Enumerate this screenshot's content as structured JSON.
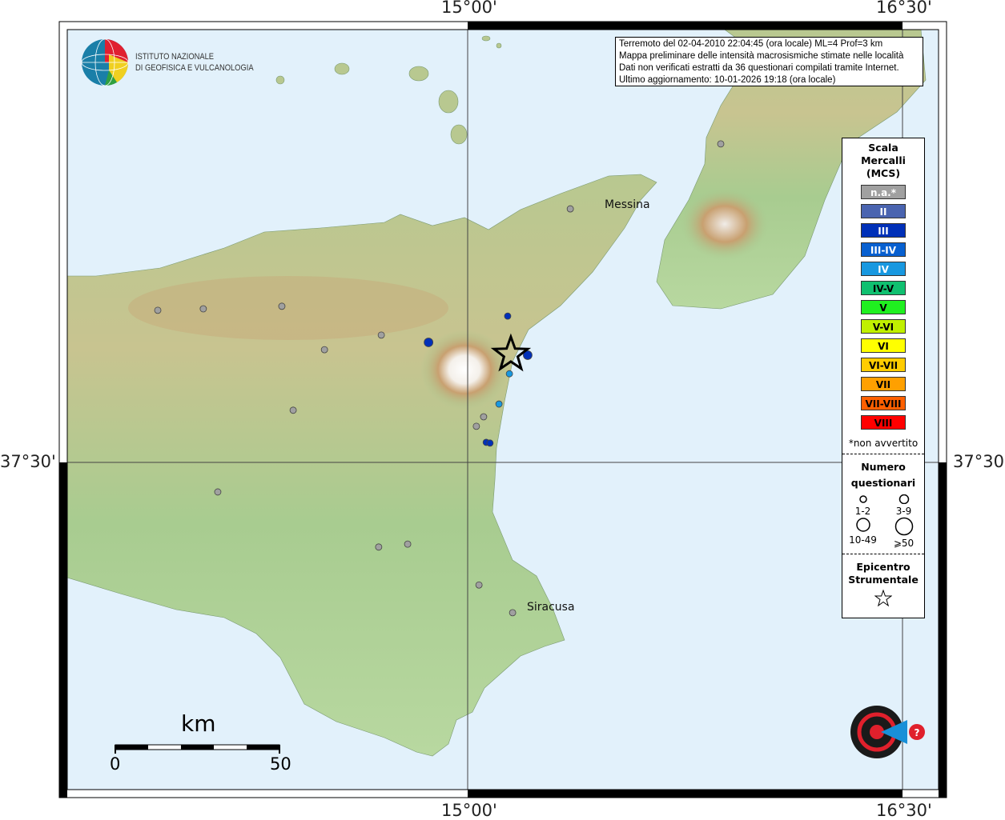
{
  "axes": {
    "lon_ticks": [
      "15°00'",
      "16°30'"
    ],
    "lat_ticks": [
      "37°30'"
    ]
  },
  "info_box": {
    "lines": [
      "Terremoto del 02-04-2010 22:04:45 (ora locale) ML=4 Prof=3 km",
      "Mappa preliminare delle intensità macrosismiche stimate nelle località",
      "Dati non verificati estratti da 36 questionari compilati tramite Internet.",
      "Ultimo aggiornamento: 10-01-2026 19:18 (ora locale)"
    ]
  },
  "logo_ingv": {
    "line1": "ISTITUTO NAZIONALE",
    "line2": "DI GEOFISICA E VULCANOLOGIA"
  },
  "logo_hsit": "www.haisentitoilterremoto.it",
  "cities": [
    {
      "name": "Messina"
    },
    {
      "name": "Siracusa"
    }
  ],
  "scale_bar": {
    "unit": "km",
    "min": "0",
    "max": "50"
  },
  "legend": {
    "title": "Scala Mercalli (MCS)",
    "classes": [
      {
        "label": "n.a.*",
        "color": "#a0a0a0",
        "text": "#fff"
      },
      {
        "label": "II",
        "color": "#4a64b0",
        "text": "#fff"
      },
      {
        "label": "III",
        "color": "#0030b8",
        "text": "#fff"
      },
      {
        "label": "III-IV",
        "color": "#0860d0",
        "text": "#fff"
      },
      {
        "label": "IV",
        "color": "#1898e0",
        "text": "#fff"
      },
      {
        "label": "IV-V",
        "color": "#10c070",
        "text": "#000"
      },
      {
        "label": "V",
        "color": "#20f020",
        "text": "#000"
      },
      {
        "label": "V-VI",
        "color": "#c0f000",
        "text": "#000"
      },
      {
        "label": "VI",
        "color": "#ffff00",
        "text": "#000"
      },
      {
        "label": "VI-VII",
        "color": "#ffcc00",
        "text": "#000"
      },
      {
        "label": "VII",
        "color": "#ffa000",
        "text": "#000"
      },
      {
        "label": "VII-VIII",
        "color": "#ff6000",
        "text": "#000"
      },
      {
        "label": "VIII",
        "color": "#ff0000",
        "text": "#000"
      }
    ],
    "note": "*non avvertito",
    "count_title": "Numero questionari",
    "count_classes": [
      "1-2",
      "3-9",
      "10-49",
      "⩾50"
    ],
    "epicenter_title": "Epicentro Strumentale"
  },
  "epicenter": {
    "lon": 15.149,
    "lat": 37.796
  },
  "observations": [
    {
      "lon": 13.931,
      "lat": 37.917,
      "mcs": "n.a.*",
      "count": "1-2"
    },
    {
      "lon": 14.088,
      "lat": 37.921,
      "mcs": "n.a.*",
      "count": "1-2"
    },
    {
      "lon": 14.359,
      "lat": 37.928,
      "mcs": "n.a.*",
      "count": "1-2"
    },
    {
      "lon": 14.702,
      "lat": 37.849,
      "mcs": "n.a.*",
      "count": "1-2"
    },
    {
      "lon": 14.506,
      "lat": 37.809,
      "mcs": "n.a.*",
      "count": "1-2"
    },
    {
      "lon": 14.398,
      "lat": 37.643,
      "mcs": "n.a.*",
      "count": "1-2"
    },
    {
      "lon": 14.138,
      "lat": 37.419,
      "mcs": "n.a.*",
      "count": "1-2"
    },
    {
      "lon": 14.693,
      "lat": 37.268,
      "mcs": "n.a.*",
      "count": "1-2"
    },
    {
      "lon": 14.793,
      "lat": 37.276,
      "mcs": "n.a.*",
      "count": "1-2"
    },
    {
      "lon": 15.039,
      "lat": 37.164,
      "mcs": "n.a.*",
      "count": "1-2"
    },
    {
      "lon": 15.155,
      "lat": 37.088,
      "mcs": "n.a.*",
      "count": "1-2"
    },
    {
      "lon": 15.354,
      "lat": 38.195,
      "mcs": "n.a.*",
      "count": "1-2"
    },
    {
      "lon": 15.873,
      "lat": 38.373,
      "mcs": "n.a.*",
      "count": "1-2"
    },
    {
      "lon": 15.03,
      "lat": 37.599,
      "mcs": "n.a.*",
      "count": "1-2"
    },
    {
      "lon": 15.055,
      "lat": 37.625,
      "mcs": "n.a.*",
      "count": "1-2"
    },
    {
      "lon": 14.865,
      "lat": 37.829,
      "mcs": "III",
      "count": "3-9"
    },
    {
      "lon": 15.207,
      "lat": 37.794,
      "mcs": "III",
      "count": "3-9"
    },
    {
      "lon": 15.138,
      "lat": 37.901,
      "mcs": "III",
      "count": "1-2"
    },
    {
      "lon": 15.064,
      "lat": 37.555,
      "mcs": "III",
      "count": "1-2"
    },
    {
      "lon": 15.077,
      "lat": 37.553,
      "mcs": "III",
      "count": "1-2"
    },
    {
      "lon": 15.144,
      "lat": 37.743,
      "mcs": "IV",
      "count": "1-2"
    },
    {
      "lon": 15.108,
      "lat": 37.66,
      "mcs": "IV",
      "count": "1-2"
    }
  ]
}
